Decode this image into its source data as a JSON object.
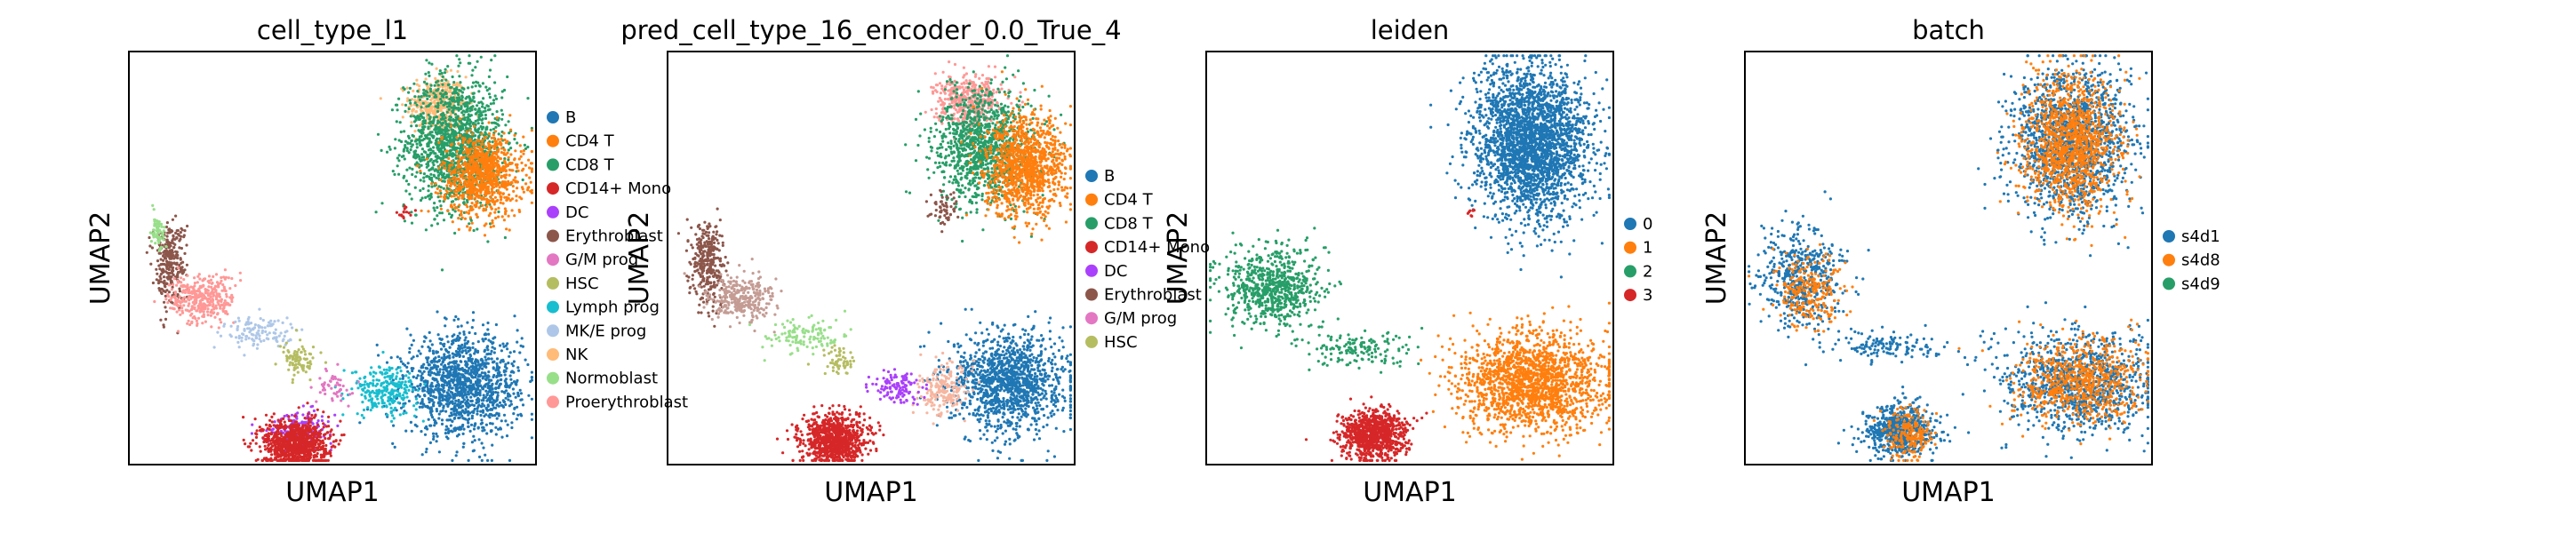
{
  "chart_data": [
    {
      "type": "scatter",
      "title": "cell_type_l1",
      "xlabel": "UMAP1",
      "ylabel": "UMAP2",
      "grid": false,
      "legend_position": "right",
      "legend": [
        {
          "name": "B",
          "color": "#1f77b4"
        },
        {
          "name": "CD4 T",
          "color": "#ff7f0e"
        },
        {
          "name": "CD8 T",
          "color": "#279e68"
        },
        {
          "name": "CD14+ Mono",
          "color": "#d62728"
        },
        {
          "name": "DC",
          "color": "#aa40fc"
        },
        {
          "name": "Erythroblast",
          "color": "#8c564b"
        },
        {
          "name": "G/M prog",
          "color": "#e377c2"
        },
        {
          "name": "HSC",
          "color": "#b5bd61"
        },
        {
          "name": "Lymph prog",
          "color": "#17becf"
        },
        {
          "name": "MK/E prog",
          "color": "#aec7e8"
        },
        {
          "name": "NK",
          "color": "#ffbb78"
        },
        {
          "name": "Normoblast",
          "color": "#98df8a"
        },
        {
          "name": "Proerythroblast",
          "color": "#ff9896"
        }
      ],
      "clusters": [
        {
          "name": "NK",
          "color": "#ffbb78",
          "cx": 0.76,
          "cy": 0.87,
          "sx": 0.035,
          "sy": 0.035,
          "n": 400
        },
        {
          "name": "CD8 T",
          "color": "#279e68",
          "cx": 0.8,
          "cy": 0.78,
          "sx": 0.06,
          "sy": 0.08,
          "n": 1400
        },
        {
          "name": "CD4 T",
          "color": "#ff7f0e",
          "cx": 0.87,
          "cy": 0.7,
          "sx": 0.05,
          "sy": 0.05,
          "n": 900
        },
        {
          "name": "CD14+ Mono",
          "color": "#d62728",
          "cx": 0.68,
          "cy": 0.61,
          "sx": 0.01,
          "sy": 0.01,
          "n": 15
        },
        {
          "name": "B",
          "color": "#1f77b4",
          "cx": 0.82,
          "cy": 0.19,
          "sx": 0.07,
          "sy": 0.06,
          "n": 1300
        },
        {
          "name": "Lymph prog",
          "color": "#17becf",
          "cx": 0.63,
          "cy": 0.18,
          "sx": 0.04,
          "sy": 0.03,
          "n": 250
        },
        {
          "name": "DC",
          "color": "#aa40fc",
          "cx": 0.42,
          "cy": 0.09,
          "sx": 0.04,
          "sy": 0.02,
          "n": 180
        },
        {
          "name": "CD14+ Mono",
          "color": "#d62728",
          "cx": 0.41,
          "cy": 0.05,
          "sx": 0.04,
          "sy": 0.03,
          "n": 900
        },
        {
          "name": "Erythroblast",
          "color": "#8c564b",
          "cx": 0.1,
          "cy": 0.49,
          "sx": 0.02,
          "sy": 0.05,
          "n": 300
        },
        {
          "name": "Proerythroblast",
          "color": "#ff9896",
          "cx": 0.18,
          "cy": 0.4,
          "sx": 0.04,
          "sy": 0.03,
          "n": 350
        },
        {
          "name": "MK/E prog",
          "color": "#aec7e8",
          "cx": 0.32,
          "cy": 0.32,
          "sx": 0.05,
          "sy": 0.02,
          "n": 120
        },
        {
          "name": "HSC",
          "color": "#b5bd61",
          "cx": 0.42,
          "cy": 0.25,
          "sx": 0.02,
          "sy": 0.02,
          "n": 90
        },
        {
          "name": "G/M prog",
          "color": "#e377c2",
          "cx": 0.5,
          "cy": 0.19,
          "sx": 0.02,
          "sy": 0.02,
          "n": 50
        },
        {
          "name": "Normoblast",
          "color": "#98df8a",
          "cx": 0.07,
          "cy": 0.56,
          "sx": 0.01,
          "sy": 0.02,
          "n": 60
        }
      ]
    },
    {
      "type": "scatter",
      "title": "pred_cell_type_16_encoder_0.0_True_4",
      "xlabel": "UMAP1",
      "ylabel": "UMAP2",
      "grid": false,
      "legend_position": "right",
      "legend": [
        {
          "name": "B",
          "color": "#1f77b4"
        },
        {
          "name": "CD4 T",
          "color": "#ff7f0e"
        },
        {
          "name": "CD8 T",
          "color": "#279e68"
        },
        {
          "name": "CD14+ Mono",
          "color": "#d62728"
        },
        {
          "name": "DC",
          "color": "#aa40fc"
        },
        {
          "name": "Erythroblast",
          "color": "#8c564b"
        },
        {
          "name": "G/M prog",
          "color": "#e377c2"
        },
        {
          "name": "HSC",
          "color": "#b5bd61"
        }
      ],
      "clusters": [
        {
          "name": "G/M prog",
          "color": "#ff9896",
          "cx": 0.74,
          "cy": 0.88,
          "sx": 0.04,
          "sy": 0.03,
          "n": 450
        },
        {
          "name": "CD8 T",
          "color": "#279e68",
          "cx": 0.78,
          "cy": 0.77,
          "sx": 0.06,
          "sy": 0.07,
          "n": 1100
        },
        {
          "name": "CD4 T",
          "color": "#ff7f0e",
          "cx": 0.88,
          "cy": 0.72,
          "sx": 0.05,
          "sy": 0.06,
          "n": 1100
        },
        {
          "name": "Erythroblast",
          "color": "#8c564b",
          "cx": 0.68,
          "cy": 0.62,
          "sx": 0.02,
          "sy": 0.02,
          "n": 60
        },
        {
          "name": "B",
          "color": "#1f77b4",
          "cx": 0.84,
          "cy": 0.2,
          "sx": 0.07,
          "sy": 0.06,
          "n": 1300
        },
        {
          "name": "HSC",
          "color": "#f7b6a0",
          "cx": 0.68,
          "cy": 0.18,
          "sx": 0.03,
          "sy": 0.03,
          "n": 200
        },
        {
          "name": "DC",
          "color": "#aa40fc",
          "cx": 0.56,
          "cy": 0.19,
          "sx": 0.03,
          "sy": 0.02,
          "n": 120
        },
        {
          "name": "CD14+ Mono",
          "color": "#d62728",
          "cx": 0.41,
          "cy": 0.06,
          "sx": 0.04,
          "sy": 0.03,
          "n": 900
        },
        {
          "name": "Erythroblast",
          "color": "#8c564b",
          "cx": 0.1,
          "cy": 0.49,
          "sx": 0.02,
          "sy": 0.05,
          "n": 330
        },
        {
          "name": "Erythroblast",
          "color": "#c49c94",
          "cx": 0.18,
          "cy": 0.4,
          "sx": 0.04,
          "sy": 0.03,
          "n": 300
        },
        {
          "name": "HSC",
          "color": "#98df8a",
          "cx": 0.33,
          "cy": 0.31,
          "sx": 0.05,
          "sy": 0.02,
          "n": 120
        },
        {
          "name": "HSC",
          "color": "#b5bd61",
          "cx": 0.42,
          "cy": 0.25,
          "sx": 0.02,
          "sy": 0.02,
          "n": 60
        }
      ]
    },
    {
      "type": "scatter",
      "title": "leiden",
      "xlabel": "UMAP1",
      "ylabel": "UMAP2",
      "grid": false,
      "legend_position": "right",
      "legend": [
        {
          "name": "0",
          "color": "#1f77b4"
        },
        {
          "name": "1",
          "color": "#ff7f0e"
        },
        {
          "name": "2",
          "color": "#279e68"
        },
        {
          "name": "3",
          "color": "#d62728"
        }
      ],
      "clusters": [
        {
          "name": "0",
          "color": "#1f77b4",
          "cx": 0.8,
          "cy": 0.78,
          "sx": 0.07,
          "sy": 0.09,
          "n": 2600
        },
        {
          "name": "3",
          "color": "#d62728",
          "cx": 0.65,
          "cy": 0.61,
          "sx": 0.005,
          "sy": 0.005,
          "n": 8
        },
        {
          "name": "1",
          "color": "#ff7f0e",
          "cx": 0.8,
          "cy": 0.2,
          "sx": 0.09,
          "sy": 0.06,
          "n": 1700
        },
        {
          "name": "2",
          "color": "#279e68",
          "cx": 0.16,
          "cy": 0.43,
          "sx": 0.06,
          "sy": 0.05,
          "n": 700
        },
        {
          "name": "2",
          "color": "#279e68",
          "cx": 0.38,
          "cy": 0.28,
          "sx": 0.06,
          "sy": 0.02,
          "n": 150
        },
        {
          "name": "3",
          "color": "#d62728",
          "cx": 0.41,
          "cy": 0.07,
          "sx": 0.04,
          "sy": 0.03,
          "n": 900
        }
      ]
    },
    {
      "type": "scatter",
      "title": "batch",
      "xlabel": "UMAP1",
      "ylabel": "UMAP2",
      "grid": false,
      "legend_position": "right",
      "legend": [
        {
          "name": "s4d1",
          "color": "#1f77b4"
        },
        {
          "name": "s4d8",
          "color": "#ff7f0e"
        },
        {
          "name": "s4d9",
          "color": "#279e68"
        }
      ],
      "clusters": [
        {
          "name": "s4d1",
          "color": "#1f77b4",
          "cx": 0.8,
          "cy": 0.78,
          "sx": 0.07,
          "sy": 0.09,
          "n": 1500
        },
        {
          "name": "s4d8",
          "color": "#ff7f0e",
          "cx": 0.8,
          "cy": 0.78,
          "sx": 0.06,
          "sy": 0.08,
          "n": 1200
        },
        {
          "name": "s4d1",
          "color": "#1f77b4",
          "cx": 0.82,
          "cy": 0.2,
          "sx": 0.09,
          "sy": 0.06,
          "n": 1000
        },
        {
          "name": "s4d8",
          "color": "#ff7f0e",
          "cx": 0.82,
          "cy": 0.2,
          "sx": 0.08,
          "sy": 0.05,
          "n": 700
        },
        {
          "name": "s4d1",
          "color": "#1f77b4",
          "cx": 0.14,
          "cy": 0.45,
          "sx": 0.05,
          "sy": 0.06,
          "n": 500
        },
        {
          "name": "s4d8",
          "color": "#ff7f0e",
          "cx": 0.16,
          "cy": 0.42,
          "sx": 0.04,
          "sy": 0.05,
          "n": 250
        },
        {
          "name": "s4d1",
          "color": "#1f77b4",
          "cx": 0.36,
          "cy": 0.29,
          "sx": 0.06,
          "sy": 0.02,
          "n": 130
        },
        {
          "name": "s4d1",
          "color": "#1f77b4",
          "cx": 0.38,
          "cy": 0.08,
          "sx": 0.04,
          "sy": 0.03,
          "n": 650
        },
        {
          "name": "s4d8",
          "color": "#ff7f0e",
          "cx": 0.4,
          "cy": 0.07,
          "sx": 0.03,
          "sy": 0.03,
          "n": 200
        }
      ]
    }
  ]
}
